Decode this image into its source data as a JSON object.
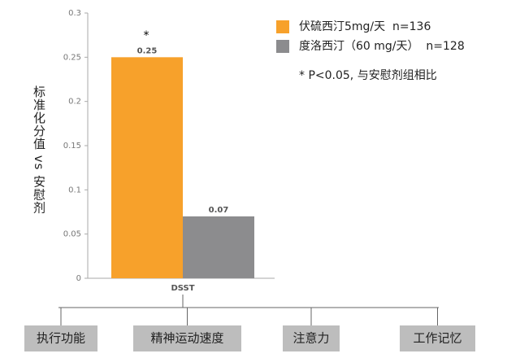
{
  "chart_data": {
    "type": "bar",
    "y_label": "标准化分值 vs 安慰剂",
    "categories": [
      "DSST"
    ],
    "series": [
      {
        "name": "伏硫西汀5mg/天  n=136",
        "color": "#f7a12b",
        "values": [
          0.25
        ]
      },
      {
        "name": "度洛西汀（60 mg/天）  n=128",
        "color": "#8c8c8e",
        "values": [
          0.07
        ]
      }
    ],
    "annotation": "*",
    "note": "* P<0.05, 与安慰剂组相比",
    "ylim": [
      0,
      0.3
    ],
    "yticks": [
      0,
      0.05,
      0.1,
      0.15,
      0.2,
      0.25,
      0.3
    ],
    "grid": false
  },
  "domains": [
    "执行功能",
    "精神运动速度",
    "注意力",
    "工作记忆"
  ]
}
